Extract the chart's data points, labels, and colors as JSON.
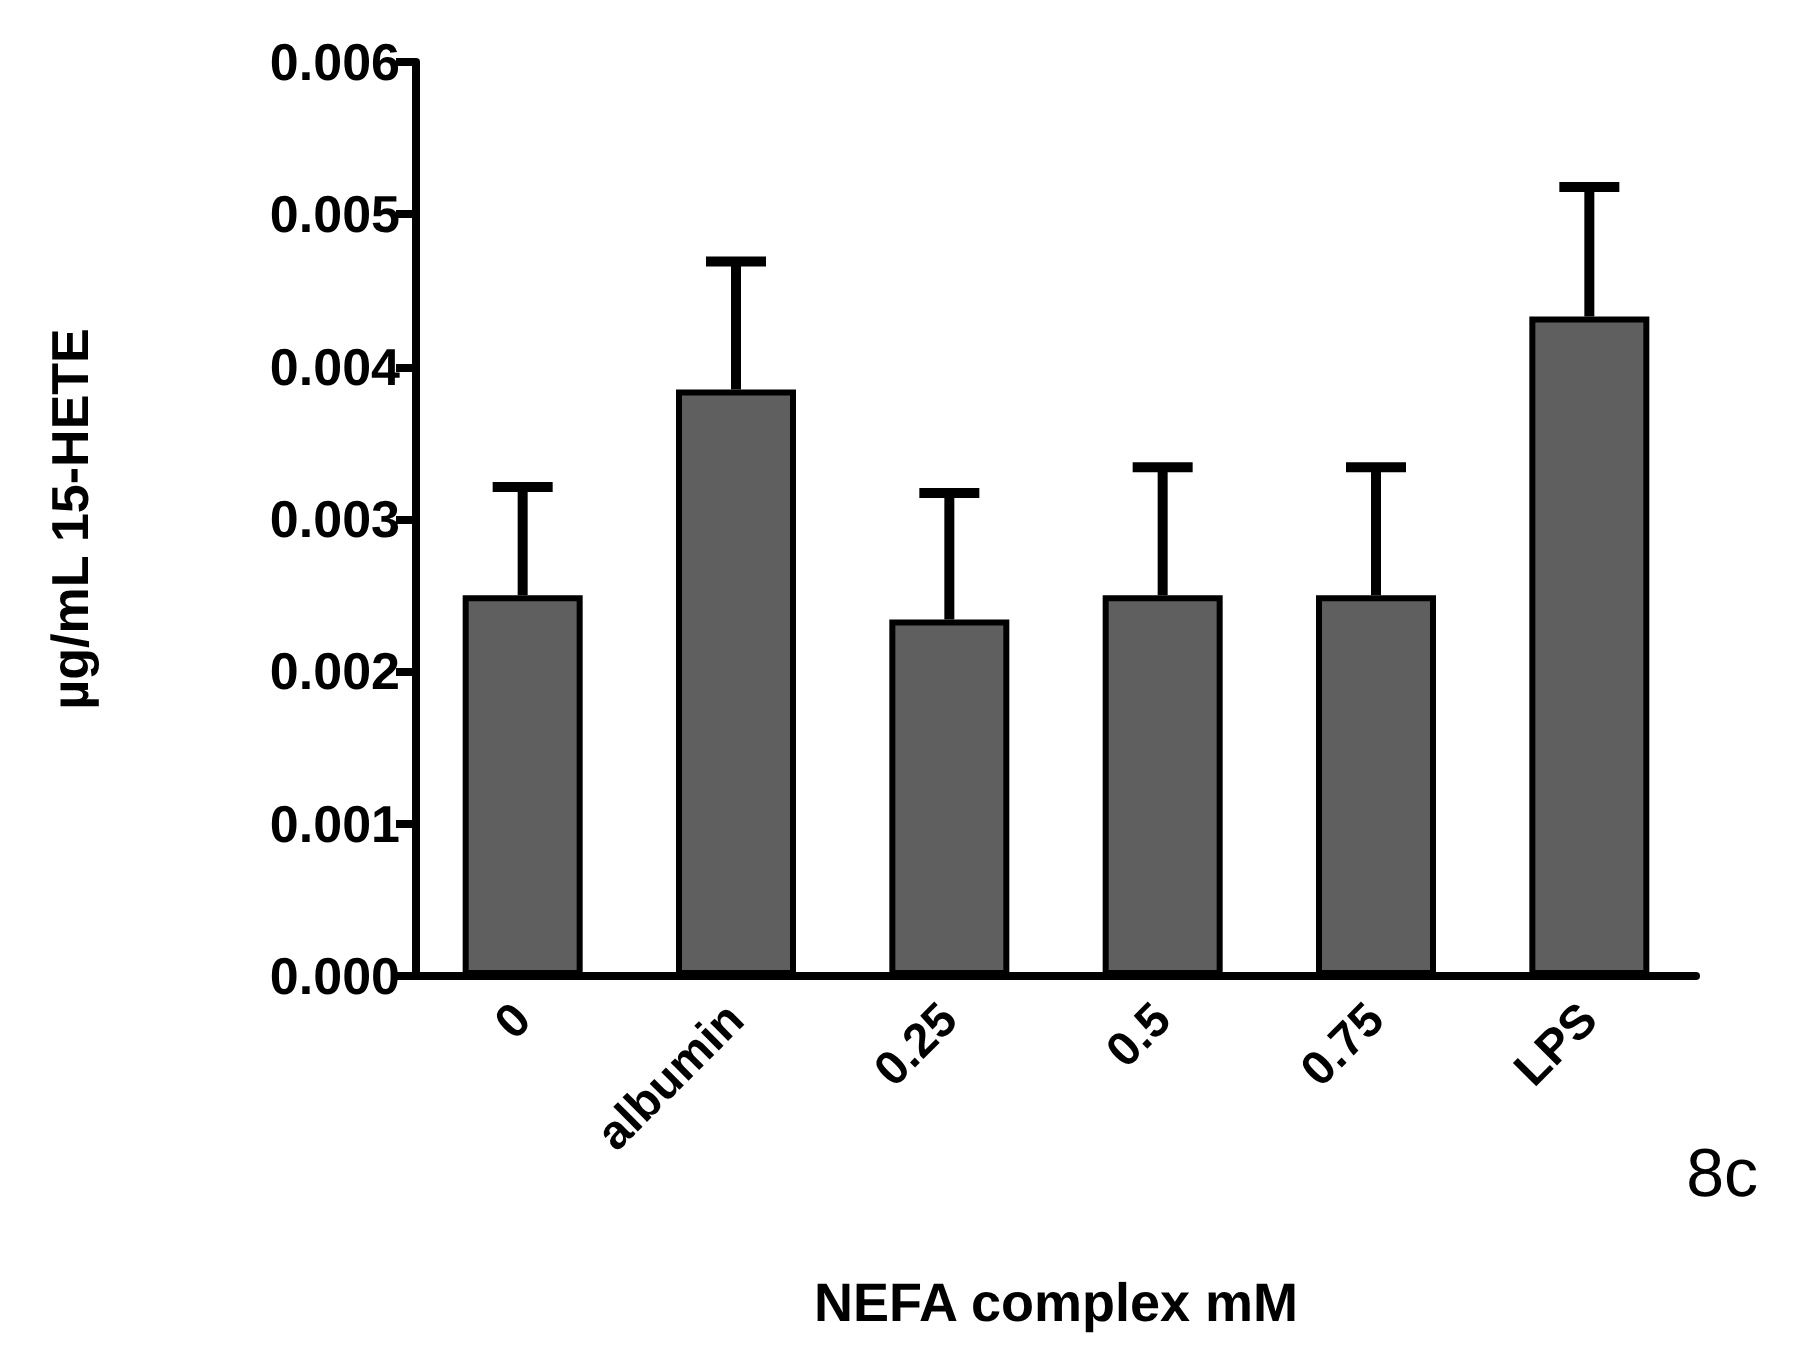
{
  "chart_data": {
    "type": "bar",
    "xlabel": "NEFA complex mM",
    "ylabel": "µg/mL 15-HETE",
    "categories": [
      "0",
      "albumin",
      "0.25",
      "0.5",
      "0.75",
      "LPS"
    ],
    "values": [
      0.0025,
      0.00385,
      0.00234,
      0.0025,
      0.0025,
      0.00433
    ],
    "errors": [
      [
        0.0025,
        0.00321
      ],
      [
        0.00385,
        0.00469
      ],
      [
        0.00234,
        0.00317
      ],
      [
        0.0025,
        0.00334
      ],
      [
        0.0025,
        0.00334
      ],
      [
        0.00433,
        0.00518
      ]
    ],
    "color": "#5f5f5f",
    "ylim": [
      0,
      0.006
    ],
    "yticks": [
      {
        "value": 0,
        "label": "0.000"
      },
      {
        "value": 0.001,
        "label": "0.001"
      },
      {
        "value": 0.002,
        "label": "0.002"
      },
      {
        "value": 0.003,
        "label": "0.003"
      },
      {
        "value": 0.004,
        "label": "0.004"
      },
      {
        "value": 0.005,
        "label": "0.005"
      },
      {
        "value": 0.006,
        "label": "0.006"
      }
    ],
    "annotations": [
      "8c"
    ]
  }
}
